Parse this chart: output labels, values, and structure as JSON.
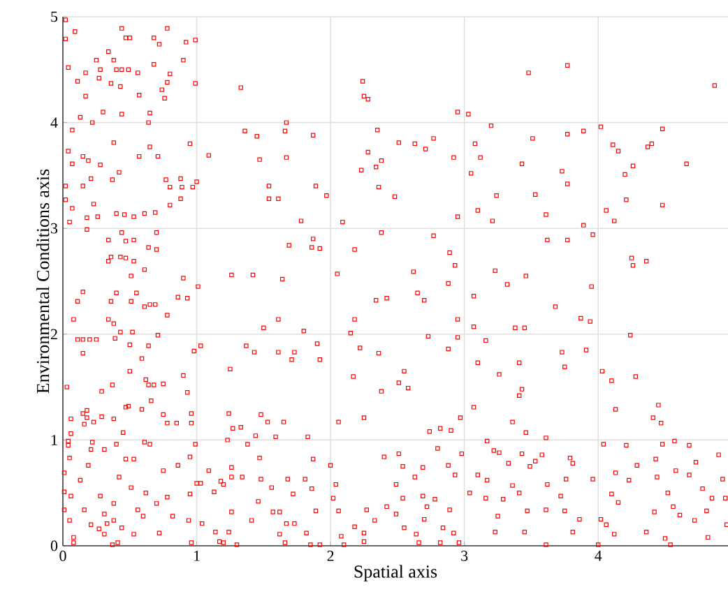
{
  "chart_data": {
    "type": "scatter",
    "xlabel": "Spatial axis",
    "ylabel": "Environmental Conditions axis",
    "xlim": [
      0,
      4.97
    ],
    "ylim": [
      0,
      5
    ],
    "xticks": [
      0,
      1,
      2,
      3,
      4
    ],
    "yticks": [
      0,
      1,
      2,
      3,
      4,
      5
    ],
    "grid": true,
    "marker": "square",
    "series": [
      {
        "color": "#ff0000",
        "x": [
          0.02,
          0.09,
          0.44,
          0.47,
          0.5,
          0.68,
          0.78,
          0.02,
          0.34,
          0.72,
          0.92,
          0.99,
          0.25,
          0.38,
          0.04,
          0.17,
          0.28,
          0.4,
          0.44,
          0.49,
          0.56,
          0.68,
          0.9,
          0.8,
          0.27,
          0.11,
          0.36,
          0.43,
          0.78,
          0.99,
          0.74,
          0.57,
          0.17,
          0.76,
          1.33,
          2.24,
          2.25,
          2.28,
          0.3,
          0.44,
          0.65,
          0.13,
          0.22,
          0.64,
          1.67,
          0.07,
          1.36,
          1.45,
          1.66,
          1.87,
          2.35,
          0.38,
          0.04,
          0.65,
          0.95,
          0.15,
          0.57,
          0.71,
          1.09,
          2.28,
          1.47,
          1.67,
          0.07,
          0.19,
          0.28,
          2.38,
          0.42,
          0.21,
          0.37,
          0.77,
          0.88,
          1.0,
          0.02,
          0.15,
          0.8,
          0.89,
          0.97,
          1.54,
          1.89,
          2.23,
          2.34,
          2.36,
          0.02,
          0.23,
          0.8,
          0.88,
          1.54,
          1.61,
          1.97,
          0.07,
          0.4,
          0.46,
          0.53,
          0.61,
          0.69,
          0.18,
          0.26,
          0.05,
          1.78,
          2.09,
          0.18,
          0.44,
          0.7,
          2.38,
          0.34,
          0.47,
          0.53,
          0.64,
          0.7,
          1.69,
          1.86,
          1.87,
          1.92,
          2.18,
          0.36,
          0.43,
          0.47,
          0.34,
          0.53,
          0.61,
          0.51,
          0.9,
          1.26,
          1.42,
          1.64,
          2.05,
          3.77,
          3.48,
          4.87,
          2.95,
          3.03,
          3.2,
          4.02,
          4.48,
          2.51,
          2.63,
          2.77,
          2.71,
          3.08,
          3.51,
          3.77,
          3.89,
          4.11,
          4.15,
          4.37,
          4.4,
          2.92,
          3.12,
          3.43,
          4.66,
          4.26,
          3.05,
          3.73,
          4.2,
          3.77,
          2.48,
          3.24,
          3.53,
          4.21,
          4.48,
          2.95,
          3.1,
          3.21,
          3.61,
          3.89,
          4.06,
          4.12,
          2.77,
          3.62,
          3.77,
          3.96,
          2.89,
          2.93,
          2.62,
          3.23,
          3.46,
          4.25,
          4.36,
          4.26,
          0.15,
          0.11,
          0.4,
          0.36,
          0.51,
          0.55,
          0.61,
          0.65,
          0.69,
          0.86,
          0.93,
          1.01,
          0.78,
          0.08,
          0.34,
          0.38,
          0.43,
          0.52,
          0.71,
          0.11,
          0.15,
          0.2,
          0.25,
          0.39,
          0.15,
          0.5,
          0.64,
          0.98,
          1.03,
          1.5,
          1.61,
          1.8,
          1.37,
          1.43,
          1.61,
          1.73,
          1.71,
          1.92,
          1.9,
          2.18,
          2.15,
          2.22,
          2.36,
          2.34,
          2.42,
          0.59,
          0.5,
          1.25,
          0.62,
          0.64,
          0.68,
          0.75,
          0.9,
          0.03,
          0.29,
          0.37,
          0.93,
          0.66,
          2.17,
          2.38,
          0.47,
          0.49,
          0.59,
          0.18,
          0.15,
          0.18,
          0.29,
          0.38,
          0.06,
          0.23,
          0.75,
          0.16,
          0.78,
          0.85,
          0.96,
          0.96,
          0.45,
          1.24,
          1.48,
          1.53,
          1.65,
          1.27,
          1.33,
          1.44,
          1.59,
          1.83,
          2.06,
          2.25,
          0.06,
          0.04,
          0.04,
          0.22,
          0.4,
          0.61,
          0.65,
          0.99,
          1.23,
          1.38,
          0.05,
          0.21,
          0.31,
          0.47,
          0.53,
          0.01,
          0.13,
          0.19,
          0.42,
          0.75,
          0.86,
          0.95,
          1.0,
          1.03,
          1.09,
          1.18,
          1.2,
          1.26,
          1.34,
          0.01,
          0.06,
          0.28,
          0.38,
          0.51,
          0.62,
          0.78,
          0.95,
          1.13,
          1.26,
          1.47,
          1.48,
          1.56,
          1.68,
          1.72,
          1.86,
          1.81,
          1.87,
          2.0,
          2.04,
          2.02,
          0.01,
          0.16,
          0.31,
          0.56,
          0.7,
          0.82,
          0.94,
          1.26,
          1.46,
          1.57,
          1.62,
          1.89,
          2.06,
          2.27,
          2.33,
          0.05,
          0.21,
          0.33,
          0.38,
          0.44,
          0.6,
          1.04,
          1.41,
          1.67,
          1.73,
          2.18,
          0.08,
          0.27,
          0.31,
          0.53,
          0.72,
          1.14,
          1.24,
          1.62,
          1.82,
          2.08,
          2.25,
          0.08,
          0.37,
          0.41,
          0.96,
          1.17,
          1.2,
          1.3,
          1.66,
          1.85,
          1.92,
          2.1,
          2.25,
          2.42,
          2.4,
          2.88,
          2.65,
          2.7,
          3.07,
          3.32,
          3.95,
          3.68,
          3.87,
          3.94,
          2.95,
          3.07,
          3.38,
          3.45,
          2.73,
          2.95,
          3.16,
          4.24,
          2.88,
          3.73,
          3.91,
          3.1,
          3.41,
          3.75,
          2.55,
          2.51,
          2.58,
          3.26,
          4.03,
          4.1,
          4.28,
          3.43,
          3.41,
          3.07,
          2.97,
          3.36,
          4.13,
          4.45,
          4.41,
          4.47,
          2.74,
          2.82,
          2.9,
          3.46,
          3.61,
          3.17,
          2.51,
          2.8,
          2.98,
          3.26,
          3.43,
          3.58,
          3.79,
          4.04,
          4.21,
          4.48,
          4.57,
          4.68,
          4.9,
          2.54,
          2.69,
          2.88,
          3.22,
          3.33,
          3.53,
          3.81,
          4.29,
          4.43,
          4.58,
          4.73,
          2.49,
          2.63,
          2.93,
          3.1,
          3.17,
          3.49,
          3.76,
          3.96,
          4.13,
          4.23,
          4.44,
          4.68,
          4.78,
          4.93,
          2.54,
          2.69,
          2.78,
          3.04,
          3.36,
          3.41,
          3.62,
          3.72,
          4.1,
          4.15,
          4.52,
          4.85,
          4.95,
          2.49,
          2.72,
          2.89,
          3.16,
          3.29,
          3.47,
          3.61,
          3.75,
          4.42,
          4.56,
          4.81,
          2.55,
          2.7,
          2.84,
          3.25,
          3.45,
          3.86,
          4.02,
          4.06,
          4.61,
          4.72,
          4.96,
          2.64,
          2.92,
          3.23,
          3.81,
          4.12,
          4.36,
          4.5,
          4.82,
          2.66,
          2.82,
          2.96,
          3.61,
          4.0,
          4.54
        ],
        "values": [
          4.97,
          4.86,
          4.89,
          4.8,
          4.8,
          4.8,
          4.89,
          4.79,
          4.67,
          4.74,
          4.76,
          4.78,
          4.59,
          4.59,
          4.52,
          4.47,
          4.5,
          4.5,
          4.5,
          4.5,
          4.47,
          4.55,
          4.59,
          4.46,
          4.42,
          4.39,
          4.37,
          4.34,
          4.38,
          4.37,
          4.31,
          4.26,
          4.25,
          4.23,
          4.33,
          4.39,
          4.25,
          4.22,
          4.1,
          4.08,
          4.09,
          4.05,
          4.0,
          4.0,
          4.0,
          3.93,
          3.92,
          3.87,
          3.92,
          3.88,
          3.93,
          3.81,
          3.73,
          3.77,
          3.8,
          3.68,
          3.68,
          3.68,
          3.69,
          3.72,
          3.65,
          3.67,
          3.61,
          3.64,
          3.6,
          3.64,
          3.53,
          3.47,
          3.46,
          3.46,
          3.47,
          3.44,
          3.4,
          3.4,
          3.39,
          3.39,
          3.39,
          3.4,
          3.4,
          3.55,
          3.58,
          3.39,
          3.27,
          3.23,
          3.22,
          3.28,
          3.28,
          3.28,
          3.31,
          3.19,
          3.14,
          3.13,
          3.11,
          3.14,
          3.15,
          3.1,
          3.11,
          3.06,
          3.07,
          3.06,
          2.99,
          2.96,
          2.96,
          2.96,
          2.89,
          2.88,
          2.89,
          2.82,
          2.8,
          2.84,
          2.82,
          2.9,
          2.81,
          2.8,
          2.73,
          2.73,
          2.72,
          2.69,
          2.69,
          2.61,
          2.55,
          2.53,
          2.56,
          2.56,
          2.52,
          2.57,
          4.54,
          4.47,
          4.35,
          4.1,
          4.08,
          3.97,
          3.96,
          3.94,
          3.81,
          3.8,
          3.85,
          3.75,
          3.8,
          3.85,
          3.89,
          3.92,
          3.79,
          3.73,
          3.77,
          3.8,
          3.67,
          3.67,
          3.61,
          3.61,
          3.59,
          3.52,
          3.54,
          3.51,
          3.42,
          3.3,
          3.31,
          3.32,
          3.27,
          3.22,
          3.11,
          3.17,
          3.07,
          3.13,
          3.03,
          3.17,
          3.07,
          2.93,
          2.89,
          2.89,
          2.94,
          2.77,
          2.65,
          2.59,
          2.6,
          2.55,
          2.72,
          2.69,
          2.65,
          2.4,
          2.31,
          2.39,
          2.31,
          2.31,
          2.39,
          2.26,
          2.28,
          2.28,
          2.35,
          2.34,
          2.45,
          2.18,
          2.14,
          2.14,
          2.1,
          2.02,
          2.02,
          1.99,
          1.95,
          1.95,
          1.95,
          1.95,
          1.96,
          1.82,
          1.9,
          1.89,
          1.84,
          1.89,
          2.06,
          2.14,
          2.03,
          1.89,
          1.83,
          1.83,
          1.83,
          1.76,
          1.76,
          1.91,
          2.14,
          2.01,
          1.87,
          1.82,
          2.32,
          2.34,
          1.77,
          1.65,
          1.67,
          1.57,
          1.52,
          1.52,
          1.53,
          1.61,
          1.5,
          1.46,
          1.52,
          1.45,
          1.37,
          1.6,
          1.46,
          1.31,
          1.32,
          1.29,
          1.28,
          1.25,
          1.21,
          1.22,
          1.2,
          1.2,
          1.17,
          1.24,
          1.15,
          1.16,
          1.16,
          1.25,
          1.16,
          1.07,
          1.25,
          1.24,
          1.17,
          1.17,
          1.11,
          1.12,
          1.04,
          1.03,
          1.03,
          1.17,
          1.21,
          1.06,
          0.99,
          0.95,
          0.98,
          0.96,
          0.98,
          0.96,
          0.96,
          1.0,
          0.96,
          0.83,
          0.91,
          0.91,
          0.82,
          0.82,
          0.69,
          0.62,
          0.76,
          0.65,
          0.71,
          0.76,
          0.84,
          0.59,
          0.59,
          0.71,
          0.61,
          0.58,
          0.74,
          0.65,
          0.51,
          0.47,
          0.47,
          0.4,
          0.55,
          0.5,
          0.46,
          0.49,
          0.51,
          0.65,
          0.83,
          0.63,
          0.55,
          0.63,
          0.49,
          0.54,
          0.63,
          0.82,
          0.76,
          0.58,
          0.45,
          0.34,
          0.34,
          0.3,
          0.34,
          0.4,
          0.28,
          0.24,
          0.32,
          0.42,
          0.32,
          0.32,
          0.33,
          0.33,
          0.34,
          0.24,
          0.24,
          0.2,
          0.21,
          0.24,
          0.17,
          0.28,
          0.21,
          0.24,
          0.21,
          0.21,
          0.18,
          0.08,
          0.16,
          0.11,
          0.11,
          0.12,
          0.13,
          0.13,
          0.11,
          0.12,
          0.09,
          0.12,
          0.03,
          0.01,
          0.03,
          0.03,
          0.04,
          0.03,
          0.01,
          0.03,
          0.01,
          0.01,
          0.01,
          0.04,
          0.37,
          0.84,
          2.48,
          2.39,
          2.32,
          2.36,
          2.47,
          2.45,
          2.26,
          2.15,
          2.12,
          2.14,
          2.07,
          2.06,
          2.06,
          1.98,
          1.97,
          1.94,
          1.99,
          1.86,
          1.83,
          1.85,
          1.73,
          1.73,
          1.69,
          1.65,
          1.54,
          1.49,
          1.62,
          1.65,
          1.56,
          1.6,
          1.48,
          1.42,
          1.31,
          1.21,
          1.17,
          1.29,
          1.33,
          1.21,
          1.16,
          1.08,
          1.11,
          1.09,
          1.07,
          1.02,
          0.99,
          0.87,
          0.92,
          0.87,
          0.88,
          0.87,
          0.86,
          0.83,
          0.96,
          0.95,
          0.96,
          0.99,
          0.95,
          0.86,
          0.75,
          0.74,
          0.76,
          0.9,
          0.78,
          0.8,
          0.78,
          0.76,
          0.82,
          0.71,
          0.79,
          0.58,
          0.65,
          0.67,
          0.67,
          0.62,
          0.75,
          0.63,
          0.63,
          0.69,
          0.62,
          0.65,
          0.67,
          0.54,
          0.63,
          0.45,
          0.47,
          0.44,
          0.5,
          0.57,
          0.5,
          0.58,
          0.47,
          0.49,
          0.41,
          0.5,
          0.45,
          0.45,
          0.3,
          0.37,
          0.34,
          0.45,
          0.44,
          0.33,
          0.34,
          0.33,
          0.32,
          0.37,
          0.33,
          0.17,
          0.25,
          0.17,
          0.28,
          0.13,
          0.25,
          0.25,
          0.2,
          0.29,
          0.24,
          0.2,
          0.11,
          0.12,
          0.13,
          0.13,
          0.11,
          0.13,
          0.07,
          0.08,
          0.03,
          0.03,
          0.03,
          0.01,
          0.01,
          0.01
        ]
      }
    ]
  }
}
